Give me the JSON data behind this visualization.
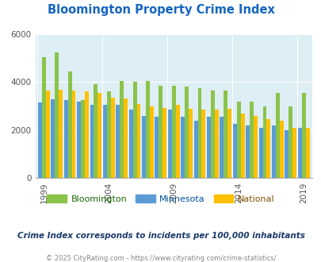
{
  "title": "Bloomington Property Crime Index",
  "years": [
    1999,
    2000,
    2001,
    2002,
    2003,
    2004,
    2005,
    2006,
    2007,
    2008,
    2009,
    2010,
    2011,
    2012,
    2013,
    2014,
    2015,
    2016,
    2017,
    2018,
    2019
  ],
  "bloomington": [
    5050,
    5250,
    4450,
    3250,
    3900,
    3600,
    4050,
    4000,
    4050,
    3850,
    3850,
    3800,
    3750,
    3650,
    3650,
    3200,
    3200,
    3000,
    3550,
    3000,
    3550
  ],
  "minnesota": [
    3150,
    3300,
    3250,
    3200,
    3050,
    3050,
    3050,
    2860,
    2600,
    2550,
    2850,
    2550,
    2380,
    2550,
    2550,
    2250,
    2200,
    2100,
    2200,
    2000,
    2100
  ],
  "national": [
    3650,
    3680,
    3650,
    3600,
    3550,
    3350,
    3320,
    3100,
    2980,
    2920,
    3050,
    2900,
    2870,
    2850,
    2900,
    2700,
    2600,
    2450,
    2380,
    2100,
    2100
  ],
  "color_bloomington": "#8bc34a",
  "color_minnesota": "#5b9bd5",
  "color_national": "#ffc000",
  "bg_color": "#ddeef4",
  "title_color": "#1565c0",
  "legend_bloomington_color": "#1a6600",
  "legend_minnesota_color": "#0050a0",
  "legend_national_color": "#805000",
  "subtitle": "Crime Index corresponds to incidents per 100,000 inhabitants",
  "footer": "© 2025 CityRating.com - https://www.cityrating.com/crime-statistics/",
  "tick_years": [
    1999,
    2004,
    2009,
    2014,
    2019
  ],
  "ylim": [
    0,
    6000
  ],
  "yticks": [
    0,
    2000,
    4000,
    6000
  ]
}
